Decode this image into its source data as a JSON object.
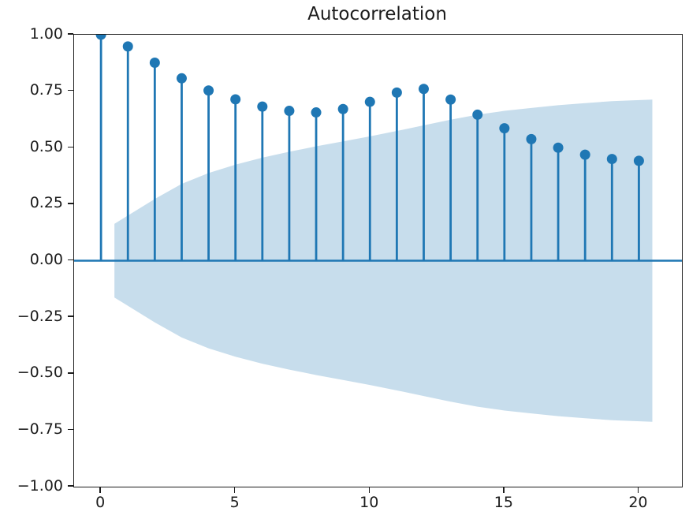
{
  "chart_data": {
    "type": "stem",
    "title": "Autocorrelation",
    "xlabel": "",
    "ylabel": "",
    "lags": [
      0,
      1,
      2,
      3,
      4,
      5,
      6,
      7,
      8,
      9,
      10,
      11,
      12,
      13,
      14,
      15,
      16,
      17,
      18,
      19,
      20
    ],
    "acf_values": [
      1.0,
      0.948,
      0.876,
      0.807,
      0.753,
      0.714,
      0.682,
      0.663,
      0.656,
      0.671,
      0.703,
      0.744,
      0.76,
      0.713,
      0.646,
      0.586,
      0.538,
      0.5,
      0.469,
      0.45,
      0.442
    ],
    "confidence_band": {
      "lags": [
        1,
        2,
        3,
        4,
        5,
        6,
        7,
        8,
        9,
        10,
        11,
        12,
        13,
        14,
        15,
        16,
        17,
        18,
        19,
        20
      ],
      "half_widths": [
        0.163,
        0.273,
        0.34,
        0.388,
        0.425,
        0.456,
        0.482,
        0.506,
        0.528,
        0.55,
        0.574,
        0.599,
        0.624,
        0.646,
        0.663,
        0.676,
        0.688,
        0.697,
        0.706,
        0.713
      ],
      "x_start": 0.5,
      "x_end": 20.5,
      "symmetric_about_zero": true
    },
    "xlim": [
      -1.0,
      21.6
    ],
    "ylim": [
      -1.0,
      1.0
    ],
    "xticks": {
      "values": [
        0,
        5,
        10,
        15,
        20
      ],
      "labels": [
        "0",
        "5",
        "10",
        "15",
        "20"
      ]
    },
    "yticks": {
      "values": [
        1.0,
        0.75,
        0.5,
        0.25,
        0.0,
        -0.25,
        -0.5,
        -0.75,
        -1.0
      ],
      "labels": [
        "1.00",
        "0.75",
        "0.50",
        "0.25",
        "0.00",
        "−0.25",
        "−0.50",
        "−0.75",
        "−1.00"
      ]
    },
    "grid": false,
    "legend": "none",
    "colors": {
      "stem": "#1f77b4",
      "marker": "#1f77b4",
      "zero_line": "#1f77b4",
      "confidence_band_fill": "#1f77b4",
      "confidence_band_opacity": 0.25,
      "axis_and_text": "#1c1c1c",
      "background": "#ffffff"
    }
  }
}
